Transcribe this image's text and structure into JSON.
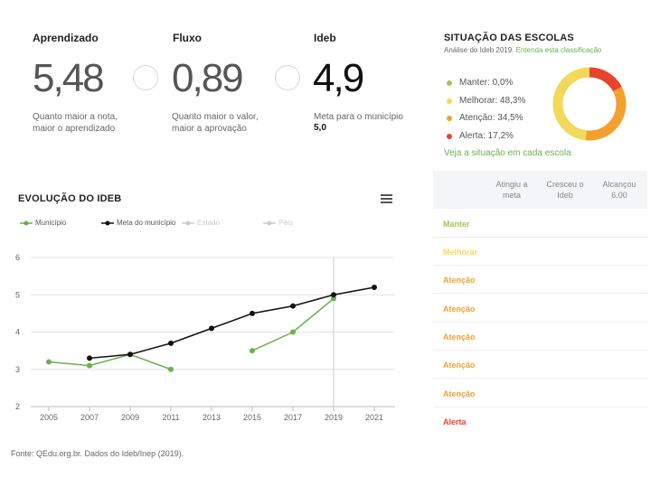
{
  "metrics": {
    "aprendizado": {
      "title": "Aprendizado",
      "value": "5,48",
      "desc": "Quanto maior a nota, maior o aprendizado"
    },
    "fluxo": {
      "title": "Fluxo",
      "value": "0,89",
      "desc": "Quanto maior o valor, maior a aprovação"
    },
    "ideb": {
      "title": "Ideb",
      "value": "4,9",
      "desc": "Meta para o município",
      "meta": "5,0"
    }
  },
  "situacao": {
    "title": "SITUAÇÃO DAS ESCOLAS",
    "subtitle": "Análise do Ideb 2019.",
    "subtitle_link": "Entenda esta classificação",
    "legend": [
      {
        "label": "Manter: 0,0%",
        "color": "#a3c64f",
        "value": 0.0
      },
      {
        "label": "Melhorar: 48,3%",
        "color": "#f3d95a",
        "value": 48.3
      },
      {
        "label": "Atenção: 34,5%",
        "color": "#f2a12f",
        "value": 34.5
      },
      {
        "label": "Alerta: 17,2%",
        "color": "#e8432d",
        "value": 17.2
      }
    ],
    "link": "Veja a situação em cada escola"
  },
  "table": {
    "headers": [
      "Atingiu a meta",
      "Cresceu o Ideb",
      "Alcançou 6.00"
    ],
    "rows": [
      {
        "label": "Manter",
        "color": "#a3c64f"
      },
      {
        "label": "Melhorar",
        "color": "#f3d95a"
      },
      {
        "label": "Atenção",
        "color": "#f2a12f"
      },
      {
        "label": "Atenção",
        "color": "#f2a12f"
      },
      {
        "label": "Atenção",
        "color": "#f2a12f"
      },
      {
        "label": "Atenção",
        "color": "#f2a12f"
      },
      {
        "label": "Atenção",
        "color": "#f2a12f"
      },
      {
        "label": "Alerta",
        "color": "#e8432d"
      }
    ]
  },
  "evolucao": {
    "title": "EVOLUÇÃO DO IDEB",
    "legend": [
      {
        "label": "Município",
        "color": "#6ab04c",
        "active": true
      },
      {
        "label": "Meta do município",
        "color": "#111111",
        "active": true
      },
      {
        "label": "Estado",
        "color": "#cccccc",
        "active": false
      },
      {
        "label": "País",
        "color": "#cccccc",
        "active": false
      }
    ]
  },
  "chart_data": {
    "type": "line",
    "title": "EVOLUÇÃO DO IDEB",
    "x": [
      2005,
      2007,
      2009,
      2011,
      2013,
      2015,
      2017,
      2019,
      2021
    ],
    "ylim": [
      2,
      6
    ],
    "yticks": [
      2,
      3,
      4,
      5,
      6
    ],
    "grid": true,
    "crosshair_x": 2019,
    "series": [
      {
        "name": "Município",
        "color": "#6ab04c",
        "segments": [
          [
            [
              2005,
              3.2
            ],
            [
              2007,
              3.1
            ],
            [
              2009,
              3.4
            ],
            [
              2011,
              3.0
            ]
          ],
          [
            [
              2015,
              3.5
            ],
            [
              2017,
              4.0
            ],
            [
              2019,
              4.9
            ]
          ]
        ]
      },
      {
        "name": "Meta do município",
        "color": "#111111",
        "segments": [
          [
            [
              2007,
              3.3
            ],
            [
              2009,
              3.4
            ],
            [
              2011,
              3.7
            ],
            [
              2013,
              4.1
            ],
            [
              2015,
              4.5
            ],
            [
              2017,
              4.7
            ],
            [
              2019,
              5.0
            ],
            [
              2021,
              5.2
            ]
          ]
        ]
      }
    ]
  },
  "footer": "Fonte: QEdu.org.br. Dados do Ideb/Inep (2019)."
}
